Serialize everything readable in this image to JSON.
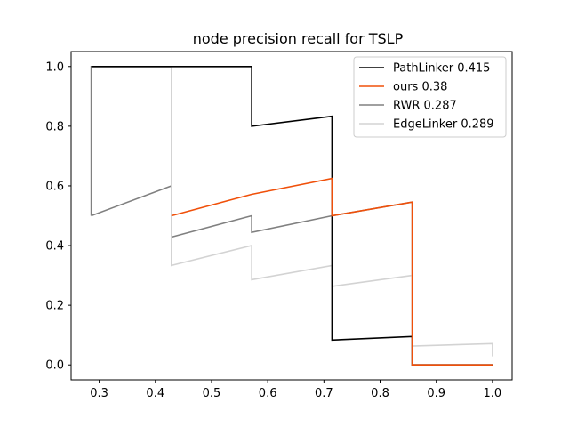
{
  "chart_data": {
    "type": "line",
    "title": "node precision recall for TSLP",
    "xlabel": "",
    "ylabel": "",
    "xlim": [
      0.25,
      1.035
    ],
    "ylim": [
      -0.05,
      1.05
    ],
    "xticks": [
      0.3,
      0.4,
      0.5,
      0.6,
      0.7,
      0.8,
      0.9,
      1.0
    ],
    "yticks": [
      0.0,
      0.2,
      0.4,
      0.6,
      0.8,
      1.0
    ],
    "xtick_labels": [
      "0.3",
      "0.4",
      "0.5",
      "0.6",
      "0.7",
      "0.8",
      "0.9",
      "1.0"
    ],
    "ytick_labels": [
      "0.0",
      "0.2",
      "0.4",
      "0.6",
      "0.8",
      "1.0"
    ],
    "grid": false,
    "legend_position": "top-right",
    "series": [
      {
        "name": "PathLinker 0.415",
        "color": "#000000",
        "x": [
          0.2857,
          0.4286,
          0.5714,
          0.5714,
          0.7143,
          0.7143,
          0.8571,
          0.8571,
          1.0
        ],
        "y": [
          1.0,
          1.0,
          1.0,
          0.8,
          0.8333,
          0.0833,
          0.0952,
          0.0,
          0.0
        ]
      },
      {
        "name": "ours 0.38",
        "color": "#f0500a",
        "x": [
          0.4286,
          0.5714,
          0.7143,
          0.7143,
          0.8571,
          0.8571,
          1.0
        ],
        "y": [
          0.5,
          0.5714,
          0.625,
          0.5,
          0.5455,
          0.0,
          0.0
        ]
      },
      {
        "name": "RWR 0.287",
        "color": "#808080",
        "x": [
          0.2857,
          0.2857,
          0.4286,
          0.4286,
          0.5714,
          0.5714,
          0.7143,
          0.8571,
          0.8571,
          1.0,
          1.0
        ],
        "y": [
          0.5,
          1.0,
          1.0,
          0.6,
          0.5,
          0.4444,
          0.5,
          0.5455,
          0.0,
          0.0,
          0.0
        ],
        "x_pre": [
          0.2857,
          0.4286
        ],
        "y_pre": [
          0.5,
          0.6
        ],
        "x_post": [
          0.4286,
          0.5714
        ],
        "y_post": [
          0.4286,
          0.5
        ]
      },
      {
        "name": "EdgeLinker 0.289",
        "color": "#d3d3d3",
        "x": [
          0.2857,
          0.4286,
          0.4286,
          0.5714,
          0.5714,
          0.7143,
          0.7143,
          0.8571,
          0.8571,
          1.0,
          1.0
        ],
        "y": [
          1.0,
          1.0,
          0.3333,
          0.4,
          0.2857,
          0.3333,
          0.2632,
          0.3,
          0.0632,
          0.0714,
          0.0286
        ]
      }
    ]
  }
}
